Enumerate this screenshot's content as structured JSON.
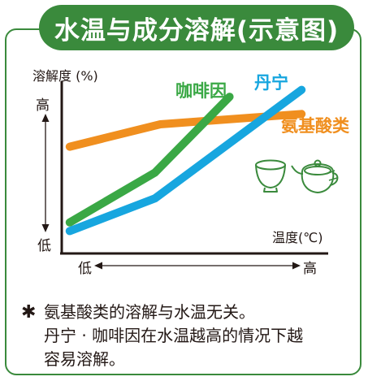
{
  "title": "水温与成分溶解(示意图)",
  "colors": {
    "green": "#3aa845",
    "blue": "#17a6df",
    "orange": "#f08f1f",
    "frame": "#3a8a3c",
    "axis": "#231815",
    "cup": "#3a8a3c"
  },
  "chart_data": {
    "type": "line",
    "title": "",
    "ylabel": "溶解度 (%)",
    "xlabel": "温度(℃)",
    "y_tick_high": "高",
    "y_tick_low": "低",
    "x_tick_low": "低",
    "x_tick_high": "高",
    "xlim": [
      0,
      1
    ],
    "ylim": [
      0,
      1
    ],
    "grid": false,
    "series": [
      {
        "name": "咖啡因",
        "color": "#3aa845",
        "x": [
          0.03,
          0.35,
          0.63
        ],
        "y": [
          0.18,
          0.47,
          0.91
        ]
      },
      {
        "name": "丹宁",
        "color": "#17a6df",
        "x": [
          0.03,
          0.35,
          0.9
        ],
        "y": [
          0.13,
          0.32,
          0.95
        ]
      },
      {
        "name": "氨基酸类",
        "color": "#f08f1f",
        "x": [
          0.03,
          0.37,
          0.9
        ],
        "y": [
          0.62,
          0.75,
          0.81
        ]
      }
    ]
  },
  "note": {
    "symbol": "✱",
    "line1": "氨基酸类的溶解与水温无关。",
    "line2": "丹宁 · 咖啡因在水温越高的情况下越",
    "line3": "容易溶解。"
  },
  "icons": [
    "teacup-icon",
    "teapot-icon"
  ]
}
